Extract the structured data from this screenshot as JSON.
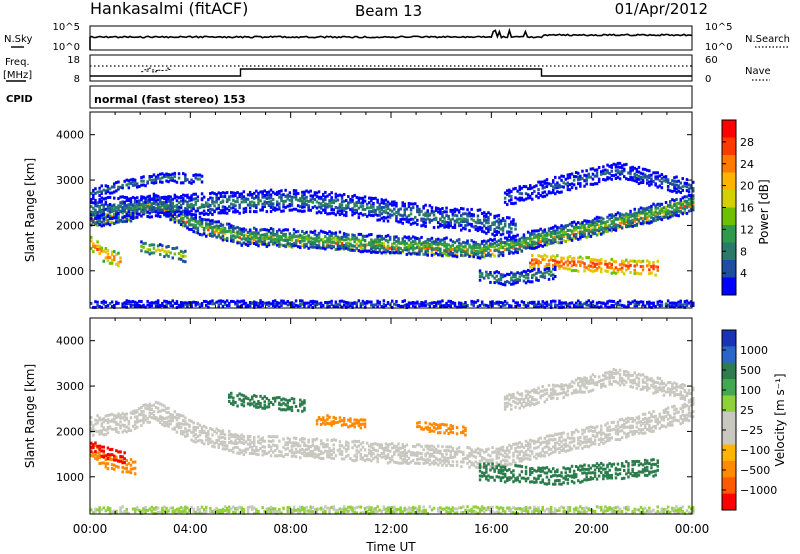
{
  "header": {
    "station": "Hankasalmi (fitACF)",
    "beam": "Beam 13",
    "date": "01/Apr/2012"
  },
  "strip_labels": {
    "nsky": "N.Sky",
    "nsearch": "N.Search",
    "freq_line1": "Freq.",
    "freq_line2": "[MHz]",
    "nave": "Nave",
    "cpid": "CPID",
    "cpid_text": "normal (fast stereo) 153",
    "noise_tick_top": "10^5",
    "noise_tick_bottom": "10^0",
    "freq_tick_top": "18",
    "freq_tick_bottom": "8",
    "nave_tick_top": "60",
    "nave_tick_bottom": "0"
  },
  "chart_data": [
    {
      "type": "heatmap",
      "name": "power",
      "ylabel": "Slant Range [km]",
      "xlabel": "Time UT",
      "x_tick_labels": [
        "00:00",
        "04:00",
        "08:00",
        "12:00",
        "16:00",
        "20:00",
        "00:00"
      ],
      "x_tick_hours": [
        0,
        4,
        8,
        12,
        16,
        20,
        24
      ],
      "xlim": [
        0,
        24
      ],
      "ylim": [
        180,
        4500
      ],
      "y_ticks": [
        1000,
        2000,
        3000,
        4000
      ],
      "colorbar": {
        "label": "Power [dB]",
        "ticks": [
          "28",
          "24",
          "20",
          "16",
          "12",
          "8",
          "4"
        ],
        "colors": [
          "#ff0000",
          "#ff3a00",
          "#ff7a00",
          "#ffb400",
          "#d4d000",
          "#6fc000",
          "#2f9a4a",
          "#2a7a6a",
          "#1e4ea0",
          "#0000ff"
        ]
      },
      "bands": [
        {
          "t": [
            0,
            1.5,
            2.5,
            3.2,
            4.2,
            6,
            8,
            10,
            12,
            14,
            15.5,
            16.5,
            18,
            20,
            22,
            24
          ],
          "r": [
            2100,
            2200,
            2450,
            2250,
            1950,
            1700,
            1640,
            1580,
            1500,
            1460,
            1400,
            1450,
            1650,
            1880,
            2150,
            2450
          ],
          "w": 200,
          "p": 24
        },
        {
          "t": [
            0,
            1.5,
            2.5,
            3.2,
            4.2,
            6,
            8,
            10,
            12,
            14,
            15.5,
            16.5,
            18,
            20,
            22,
            24
          ],
          "r": [
            2150,
            2250,
            2500,
            2300,
            2000,
            1750,
            1700,
            1640,
            1560,
            1520,
            1460,
            1520,
            1720,
            1950,
            2200,
            2480
          ],
          "w": 340,
          "p": 12
        },
        {
          "t": [
            0,
            2,
            4,
            6,
            8,
            10,
            12,
            14,
            15.5,
            16,
            17
          ],
          "r": [
            2350,
            2400,
            2450,
            2500,
            2550,
            2450,
            2300,
            2150,
            2100,
            2000,
            1900
          ],
          "w": 420,
          "p": 8
        },
        {
          "t": [
            17.5,
            19,
            20.5,
            22,
            22.6
          ],
          "r": [
            1200,
            1150,
            1100,
            1050,
            1050
          ],
          "w": 260,
          "p": 26
        },
        {
          "t": [
            0,
            0.5,
            1.2
          ],
          "r": [
            1600,
            1350,
            1200
          ],
          "w": 250,
          "p": 24
        },
        {
          "t": [
            2,
            2.6,
            3.2,
            3.8
          ],
          "r": [
            1500,
            1450,
            1400,
            1300
          ],
          "w": 200,
          "p": 16
        },
        {
          "t": [
            15.5,
            16.5,
            18.5
          ],
          "r": [
            900,
            800,
            950
          ],
          "w": 220,
          "p": 10
        },
        {
          "t": [
            16.5,
            18,
            19.5,
            21,
            22.5,
            24
          ],
          "r": [
            2600,
            2800,
            3000,
            3200,
            3000,
            2800
          ],
          "w": 300,
          "p": 6
        },
        {
          "t": [
            0,
            6,
            12,
            18,
            24
          ],
          "r": [
            250,
            250,
            250,
            250,
            250
          ],
          "w": 100,
          "p": 6
        },
        {
          "t": [
            0,
            1.5,
            3,
            4.5
          ],
          "r": [
            2700,
            2900,
            3050,
            3000
          ],
          "w": 150,
          "p": 8
        }
      ]
    },
    {
      "type": "heatmap",
      "name": "velocity",
      "ylabel": "Slant Range [km]",
      "xlabel": "Time UT",
      "x_tick_labels": [
        "00:00",
        "04:00",
        "08:00",
        "12:00",
        "16:00",
        "20:00",
        "00:00"
      ],
      "x_tick_hours": [
        0,
        4,
        8,
        12,
        16,
        20,
        24
      ],
      "xlim": [
        0,
        24
      ],
      "ylim": [
        180,
        4500
      ],
      "y_ticks": [
        1000,
        2000,
        3000,
        4000
      ],
      "colorbar": {
        "label": "Velocity [m s⁻¹]",
        "ticks": [
          "1000",
          "500",
          "100",
          "25",
          "−25",
          "−100",
          "−500",
          "−1000"
        ],
        "colors": [
          "#1a32b4",
          "#2a66c8",
          "#2c7c4c",
          "#44a852",
          "#8fd13a",
          "#c8c8c0",
          "#c8c8c0",
          "#ffb400",
          "#ff8a00",
          "#ff5a00",
          "#ff0000"
        ]
      },
      "bands": [
        {
          "t": [
            0,
            1.5,
            2.5,
            3.2,
            4.2,
            6,
            8,
            10,
            12,
            14,
            15.5,
            16.5,
            18,
            20,
            22,
            24
          ],
          "r": [
            2100,
            2200,
            2450,
            2250,
            1950,
            1700,
            1640,
            1580,
            1500,
            1460,
            1400,
            1450,
            1650,
            1880,
            2150,
            2450
          ],
          "w": 380,
          "v": 0
        },
        {
          "t": [
            5.5,
            6.5,
            7.5,
            8.5
          ],
          "r": [
            2700,
            2650,
            2600,
            2550
          ],
          "w": 220,
          "v": 200
        },
        {
          "t": [
            9,
            10,
            11
          ],
          "r": [
            2250,
            2200,
            2150
          ],
          "w": 160,
          "v": -300
        },
        {
          "t": [
            13,
            14,
            15
          ],
          "r": [
            2100,
            2050,
            2000
          ],
          "w": 140,
          "v": -300
        },
        {
          "t": [
            0,
            0.5,
            1.2,
            1.8
          ],
          "r": [
            1600,
            1350,
            1250,
            1200
          ],
          "w": 260,
          "v": -300
        },
        {
          "t": [
            0,
            0.7,
            1.4
          ],
          "r": [
            1650,
            1500,
            1400
          ],
          "w": 180,
          "v": -1000
        },
        {
          "t": [
            15.5,
            17,
            18.5,
            20,
            21.5,
            22.6
          ],
          "r": [
            1100,
            1050,
            1000,
            1080,
            1150,
            1200
          ],
          "w": 320,
          "v": 150
        },
        {
          "t": [
            16.5,
            18,
            19.5,
            21,
            22.5,
            24
          ],
          "r": [
            2600,
            2800,
            3000,
            3200,
            3000,
            2800
          ],
          "w": 300,
          "v": 0
        },
        {
          "t": [
            0,
            6,
            12,
            18,
            24
          ],
          "r": [
            250,
            250,
            250,
            250,
            250
          ],
          "w": 100,
          "v": 30
        }
      ]
    }
  ]
}
